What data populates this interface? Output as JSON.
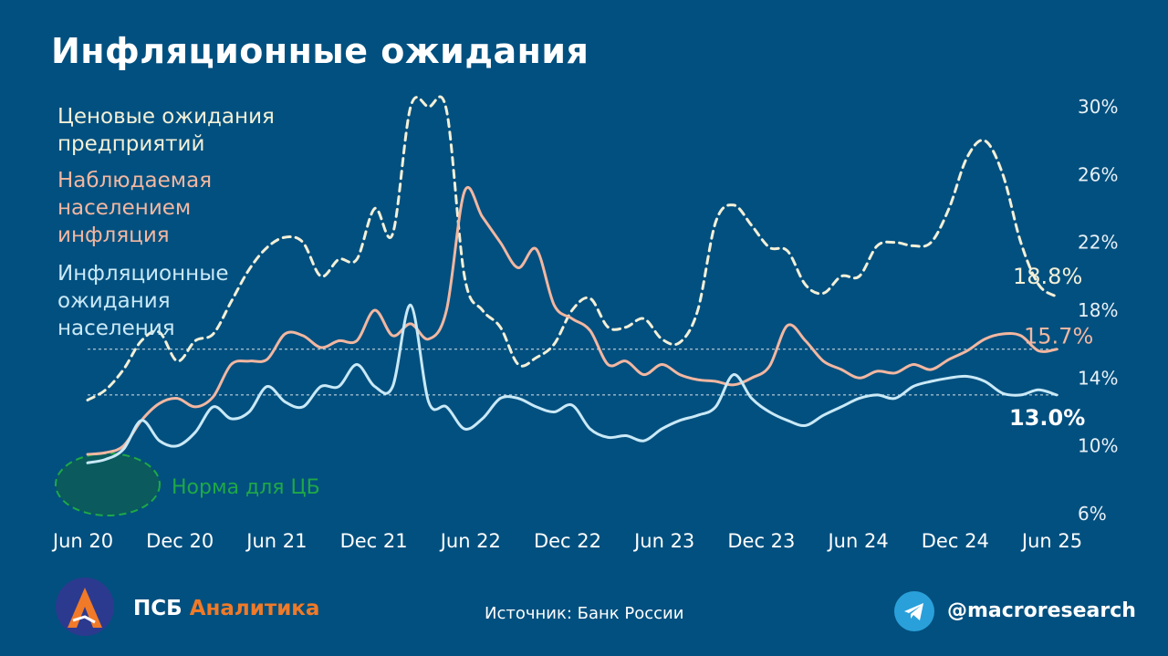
{
  "title": "Инфляционные ожидания",
  "legend": {
    "firms": "Ценовые ожидания предприятий",
    "observed": "Наблюдаемая населением инфляция",
    "expected": "Инфляционные ожидания населения"
  },
  "norm_label": "Норма для ЦБ",
  "source": "Источник: Банк России",
  "brand": {
    "psb": "ПСБ",
    "analytics": "Аналитика"
  },
  "telegram_handle": "@macroresearch",
  "colors": {
    "background": "#02507f",
    "firms": "#f3f0d8",
    "observed": "#f2b7a1",
    "expected": "#c9e9f7",
    "norm": "#1fa847",
    "brand_orange": "#f07a28"
  },
  "chart_data": {
    "type": "line",
    "y_axis_position": "right",
    "ylim": [
      6,
      30
    ],
    "yticks": [
      "30%",
      "26%",
      "22%",
      "18%",
      "14%",
      "10%",
      "6%"
    ],
    "ytick_values": [
      30,
      26,
      22,
      18,
      14,
      10,
      6
    ],
    "xtick_labels": [
      "Jun 20",
      "Dec 20",
      "Jun 21",
      "Dec 21",
      "Jun 22",
      "Dec 22",
      "Jun 23",
      "Dec 23",
      "Jun 24",
      "Dec 24",
      "Jun 25"
    ],
    "x_start": "Jun 20",
    "x_end": "Jun 25",
    "reference_lines": [
      15.7,
      13.0
    ],
    "series": [
      {
        "name": "Ценовые ожидания предприятий",
        "style": "dashed",
        "end_label": "18.8%",
        "values": [
          12.7,
          13.3,
          14.5,
          16.2,
          16.7,
          15.0,
          16.2,
          16.6,
          18.5,
          20.4,
          21.7,
          22.3,
          22.0,
          20.0,
          21.0,
          21.0,
          24.0,
          22.5,
          30.0,
          30.0,
          29.8,
          20.0,
          18.0,
          17.0,
          14.8,
          15.2,
          16.0,
          18.0,
          18.7,
          17.0,
          17.0,
          17.5,
          16.3,
          16.1,
          18.0,
          23.2,
          24.2,
          23.0,
          21.7,
          21.5,
          19.5,
          19.0,
          20.0,
          20.0,
          21.8,
          22.0,
          21.8,
          22.0,
          24.0,
          27.0,
          28.0,
          26.0,
          22.0,
          19.5,
          18.8
        ]
      },
      {
        "name": "Наблюдаемая населением инфляция",
        "style": "solid",
        "end_label": "15.7%",
        "values": [
          9.5,
          9.6,
          10.0,
          11.5,
          12.5,
          12.8,
          12.3,
          12.9,
          14.8,
          15.0,
          15.1,
          16.6,
          16.5,
          15.8,
          16.2,
          16.2,
          18.0,
          16.5,
          17.2,
          16.3,
          18.0,
          25.0,
          23.5,
          22.0,
          20.5,
          21.6,
          18.3,
          17.5,
          16.8,
          14.8,
          15.0,
          14.2,
          14.8,
          14.2,
          13.9,
          13.8,
          13.6,
          14.0,
          14.7,
          17.1,
          16.2,
          15.0,
          14.5,
          14.0,
          14.4,
          14.3,
          14.8,
          14.5,
          15.1,
          15.6,
          16.3,
          16.6,
          16.5,
          15.6,
          15.7
        ]
      },
      {
        "name": "Инфляционные ожидания населения",
        "style": "solid",
        "end_label": "13.0%",
        "values": [
          9.0,
          9.2,
          9.8,
          11.5,
          10.3,
          10.0,
          10.8,
          12.3,
          11.6,
          12.0,
          13.5,
          12.6,
          12.3,
          13.5,
          13.5,
          14.8,
          13.5,
          13.5,
          18.3,
          12.6,
          12.3,
          11.0,
          11.6,
          12.8,
          12.8,
          12.3,
          12.0,
          12.4,
          11.0,
          10.5,
          10.6,
          10.3,
          11.0,
          11.5,
          11.8,
          12.3,
          14.2,
          12.8,
          12.0,
          11.5,
          11.2,
          11.8,
          12.3,
          12.8,
          13.0,
          12.8,
          13.5,
          13.8,
          14.0,
          14.1,
          13.8,
          13.1,
          13.0,
          13.3,
          13.0
        ]
      }
    ]
  }
}
